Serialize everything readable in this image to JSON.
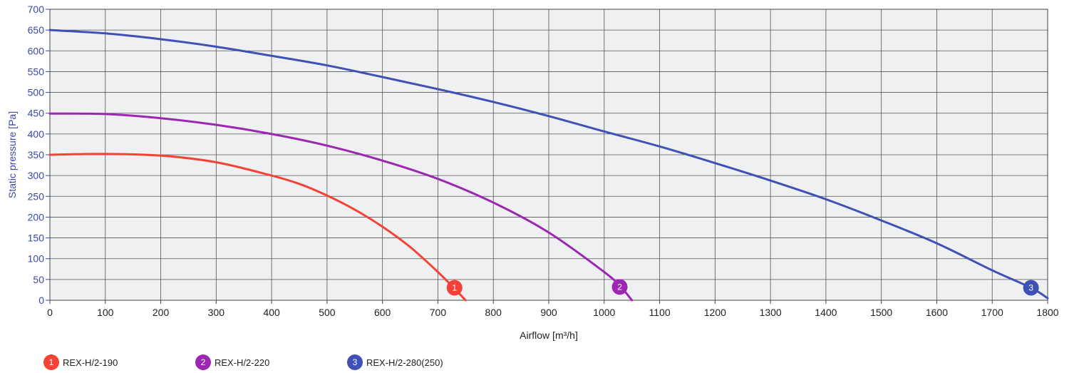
{
  "chart_data": {
    "type": "line",
    "xlabel": "Airflow [m³/h]",
    "ylabel": "Static pressure [Pa]",
    "xlim": [
      0,
      1800
    ],
    "ylim": [
      0,
      700
    ],
    "x_ticks": [
      0,
      100,
      200,
      300,
      400,
      500,
      600,
      700,
      800,
      900,
      1000,
      1100,
      1200,
      1300,
      1400,
      1500,
      1600,
      1700,
      1800
    ],
    "y_ticks": [
      0,
      50,
      100,
      150,
      200,
      250,
      300,
      350,
      400,
      450,
      500,
      550,
      600,
      650,
      700
    ],
    "grid": true,
    "legend_position": "bottom-left",
    "series": [
      {
        "name": "REX-H/2-190",
        "marker": "1",
        "color": "#f44336",
        "x": [
          0,
          100,
          200,
          300,
          400,
          450,
          500,
          550,
          600,
          650,
          700,
          730,
          750
        ],
        "y": [
          350,
          352,
          348,
          332,
          300,
          280,
          252,
          218,
          177,
          128,
          68,
          28,
          0
        ],
        "marker_at": [
          730,
          30
        ]
      },
      {
        "name": "REX-H/2-220",
        "marker": "2",
        "color": "#9c27b0",
        "x": [
          0,
          100,
          200,
          300,
          400,
          500,
          600,
          700,
          800,
          900,
          1000,
          1030,
          1050
        ],
        "y": [
          449,
          448,
          438,
          422,
          400,
          372,
          336,
          292,
          235,
          163,
          68,
          32,
          0
        ],
        "marker_at": [
          1028,
          32
        ]
      },
      {
        "name": "REX-H/2-280(250)",
        "marker": "3",
        "color": "#3f51b5",
        "x": [
          0,
          100,
          200,
          300,
          400,
          500,
          600,
          700,
          800,
          900,
          1000,
          1100,
          1200,
          1300,
          1400,
          1500,
          1600,
          1700,
          1770,
          1800
        ],
        "y": [
          650,
          642,
          628,
          610,
          588,
          565,
          537,
          508,
          477,
          443,
          406,
          370,
          330,
          288,
          243,
          192,
          137,
          72,
          30,
          5
        ],
        "marker_at": [
          1770,
          30
        ]
      }
    ]
  }
}
